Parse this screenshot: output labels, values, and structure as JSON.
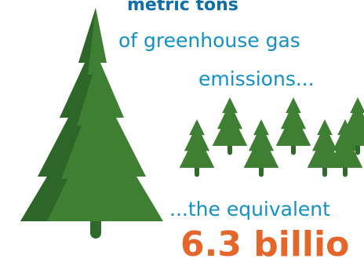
{
  "text": {
    "line1": "metric tons",
    "line2": "of greenhouse gas",
    "line3": "emissions...",
    "line4": "...the equivalent",
    "line5": "6.3 billio"
  },
  "icons": {
    "big_tree": "pine-tree-icon",
    "small_trees": "pine-tree-icon"
  },
  "colors": {
    "tree_green": "#3f7f34",
    "tree_shade": "#2d6628",
    "trunk": "#2e6b2a",
    "heading_blue": "#0f6fa8",
    "text_blue": "#1390c8",
    "highlight_orange": "#e5652a"
  }
}
